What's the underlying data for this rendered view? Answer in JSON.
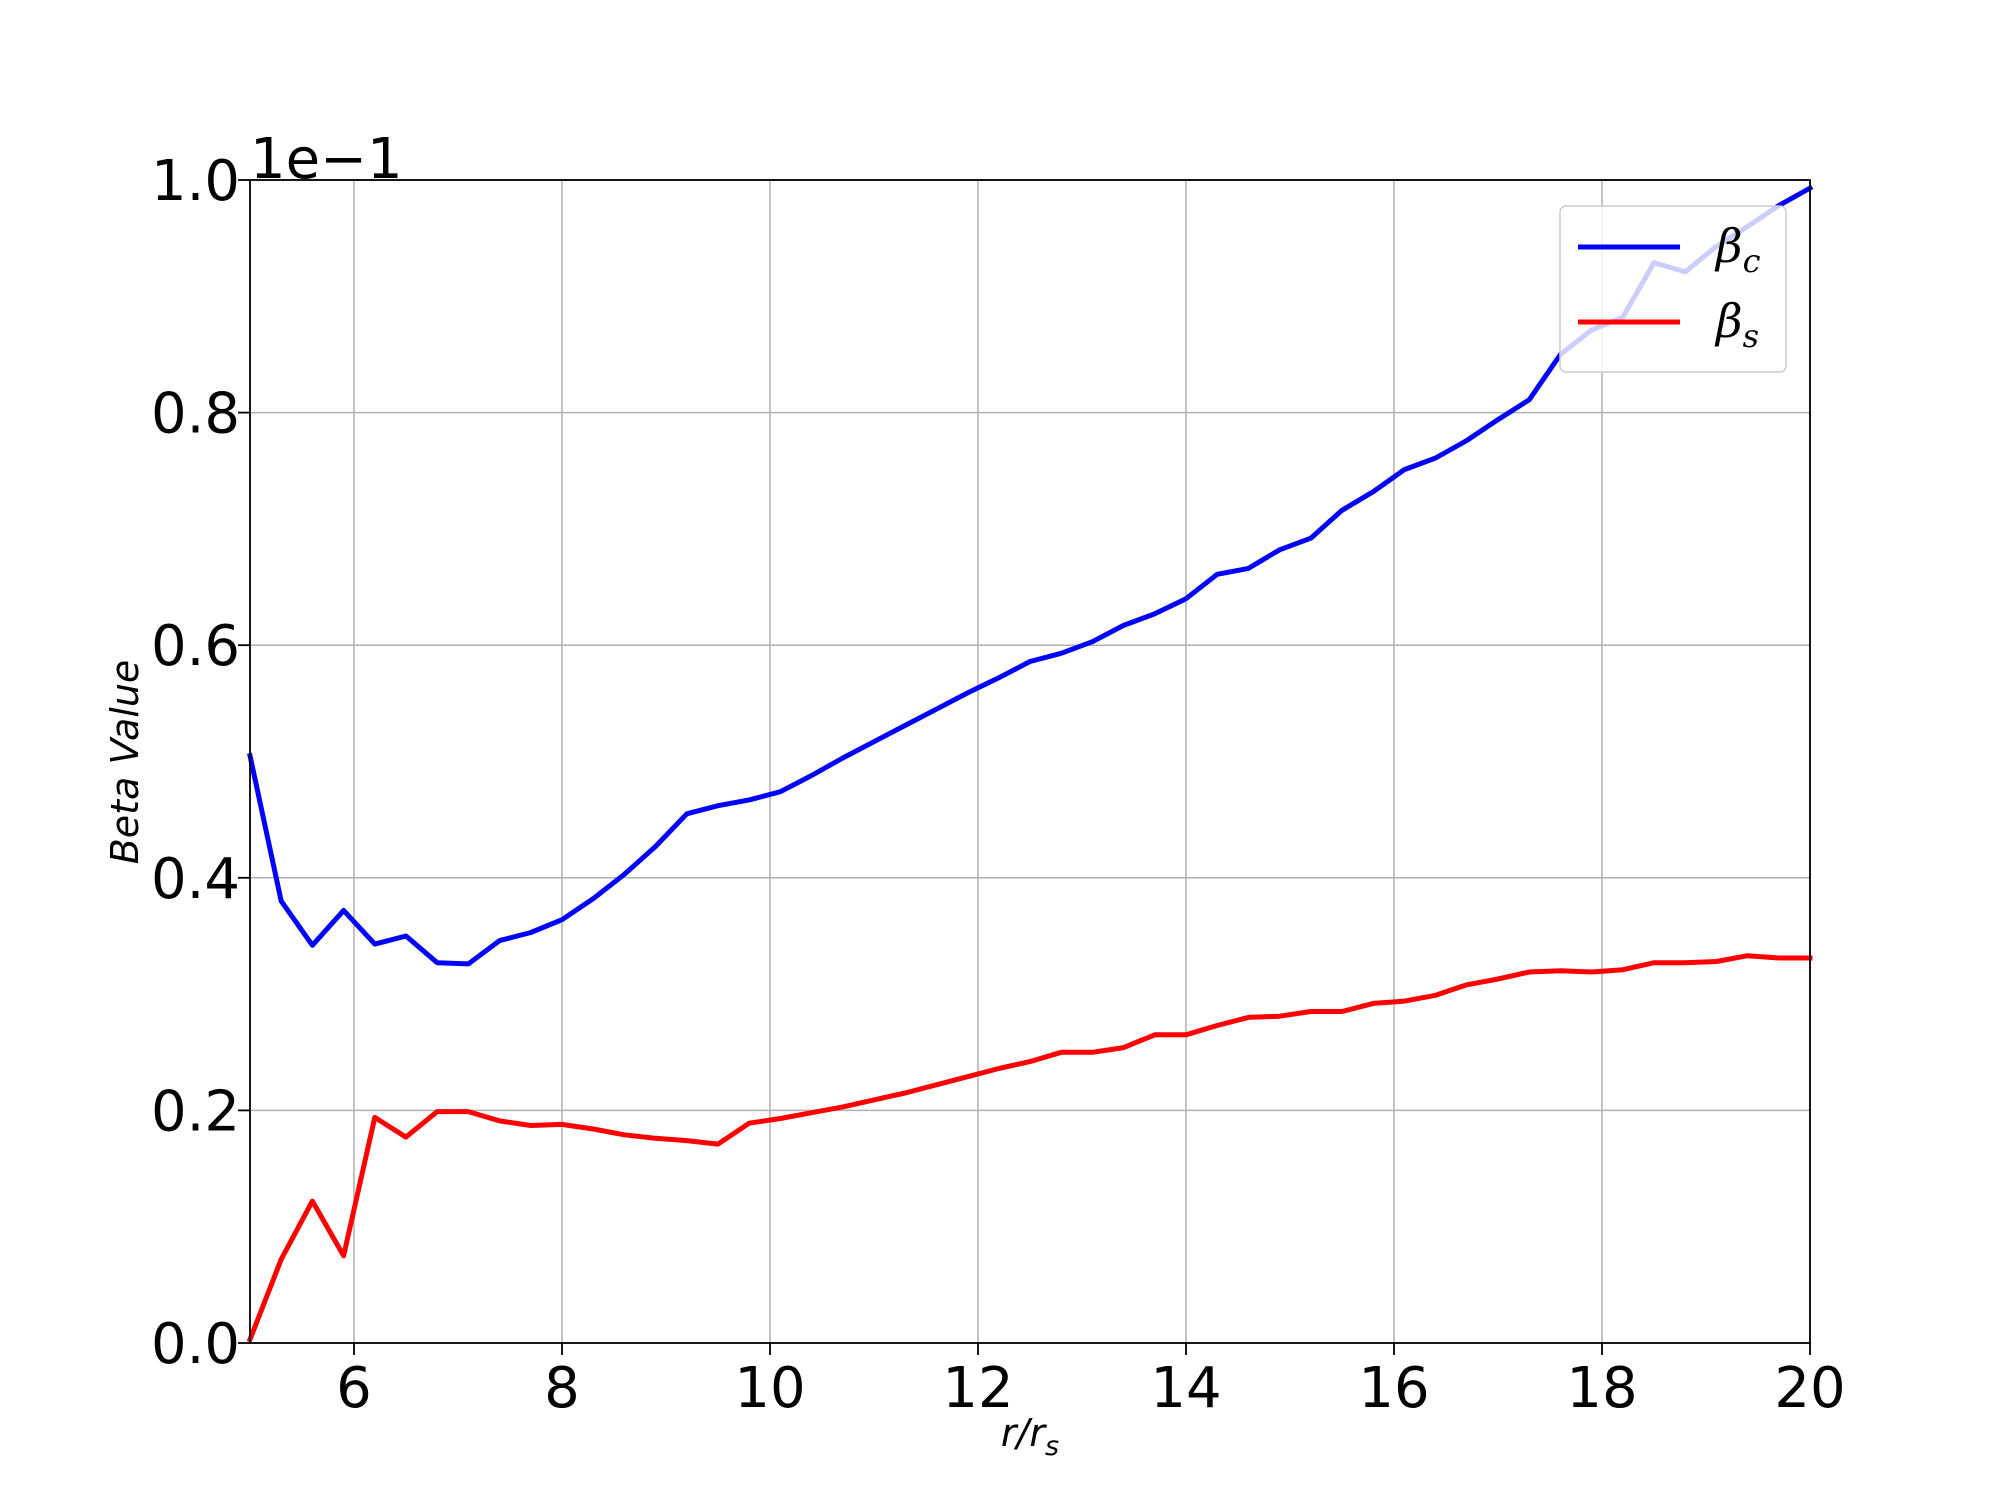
{
  "chart_data": {
    "type": "line",
    "xlabel": "r/r",
    "xlabel_sub": "s",
    "ylabel": "Beta Value",
    "offset_text": "1e−1",
    "xlim": [
      5,
      20
    ],
    "ylim": [
      0,
      1.0
    ],
    "xticks": [
      "6",
      "8",
      "10",
      "12",
      "14",
      "16",
      "18",
      "20"
    ],
    "yticks": [
      "0.0",
      "0.2",
      "0.4",
      "0.6",
      "0.8",
      "1.0"
    ],
    "grid": true,
    "legend_position": "top-right",
    "colors": {
      "beta_c": "#0000ff",
      "beta_s": "#ff0000"
    },
    "series": [
      {
        "name": "βc",
        "label_main": "β",
        "label_sub": "c",
        "color": "#0000ff",
        "x": [
          5.0,
          5.3,
          5.6,
          5.9,
          6.2,
          6.5,
          6.8,
          7.1,
          7.4,
          7.7,
          8.0,
          8.3,
          8.6,
          8.9,
          9.2,
          9.5,
          9.8,
          10.1,
          10.4,
          10.7,
          11.0,
          11.3,
          11.6,
          11.9,
          12.2,
          12.5,
          12.8,
          13.1,
          13.4,
          13.7,
          14.0,
          14.3,
          14.6,
          14.9,
          15.2,
          15.5,
          15.8,
          16.1,
          16.4,
          16.7,
          17.0,
          17.3,
          17.6,
          17.9,
          18.2,
          18.5,
          18.8,
          19.1,
          19.4,
          19.7,
          20.0
        ],
        "y": [
          0.505,
          0.38,
          0.342,
          0.372,
          0.343,
          0.35,
          0.327,
          0.326,
          0.346,
          0.353,
          0.364,
          0.382,
          0.403,
          0.427,
          0.455,
          0.462,
          0.467,
          0.474,
          0.488,
          0.503,
          0.517,
          0.531,
          0.545,
          0.559,
          0.572,
          0.586,
          0.593,
          0.603,
          0.617,
          0.627,
          0.64,
          0.661,
          0.666,
          0.682,
          0.692,
          0.716,
          0.732,
          0.751,
          0.761,
          0.776,
          0.794,
          0.811,
          0.85,
          0.871,
          0.882,
          0.929,
          0.921,
          0.943,
          0.96,
          0.978,
          0.993
        ]
      },
      {
        "name": "βs",
        "label_main": "β",
        "label_sub": "s",
        "color": "#ff0000",
        "x": [
          5.0,
          5.3,
          5.6,
          5.9,
          6.2,
          6.5,
          6.8,
          7.1,
          7.4,
          7.7,
          8.0,
          8.3,
          8.6,
          8.9,
          9.2,
          9.5,
          9.8,
          10.1,
          10.4,
          10.7,
          11.0,
          11.3,
          11.6,
          11.9,
          12.2,
          12.5,
          12.8,
          13.1,
          13.4,
          13.7,
          14.0,
          14.3,
          14.6,
          14.9,
          15.2,
          15.5,
          15.8,
          16.1,
          16.4,
          16.7,
          17.0,
          17.3,
          17.6,
          17.9,
          18.2,
          18.5,
          18.8,
          19.1,
          19.4,
          19.7,
          20.0
        ],
        "y": [
          0.003,
          0.072,
          0.122,
          0.075,
          0.194,
          0.177,
          0.199,
          0.199,
          0.191,
          0.187,
          0.188,
          0.184,
          0.179,
          0.176,
          0.174,
          0.171,
          0.189,
          0.193,
          0.198,
          0.203,
          0.209,
          0.215,
          0.222,
          0.229,
          0.236,
          0.242,
          0.25,
          0.25,
          0.254,
          0.265,
          0.265,
          0.273,
          0.28,
          0.281,
          0.285,
          0.285,
          0.292,
          0.294,
          0.299,
          0.308,
          0.313,
          0.319,
          0.32,
          0.319,
          0.321,
          0.327,
          0.327,
          0.328,
          0.333,
          0.331,
          0.331
        ]
      }
    ]
  }
}
